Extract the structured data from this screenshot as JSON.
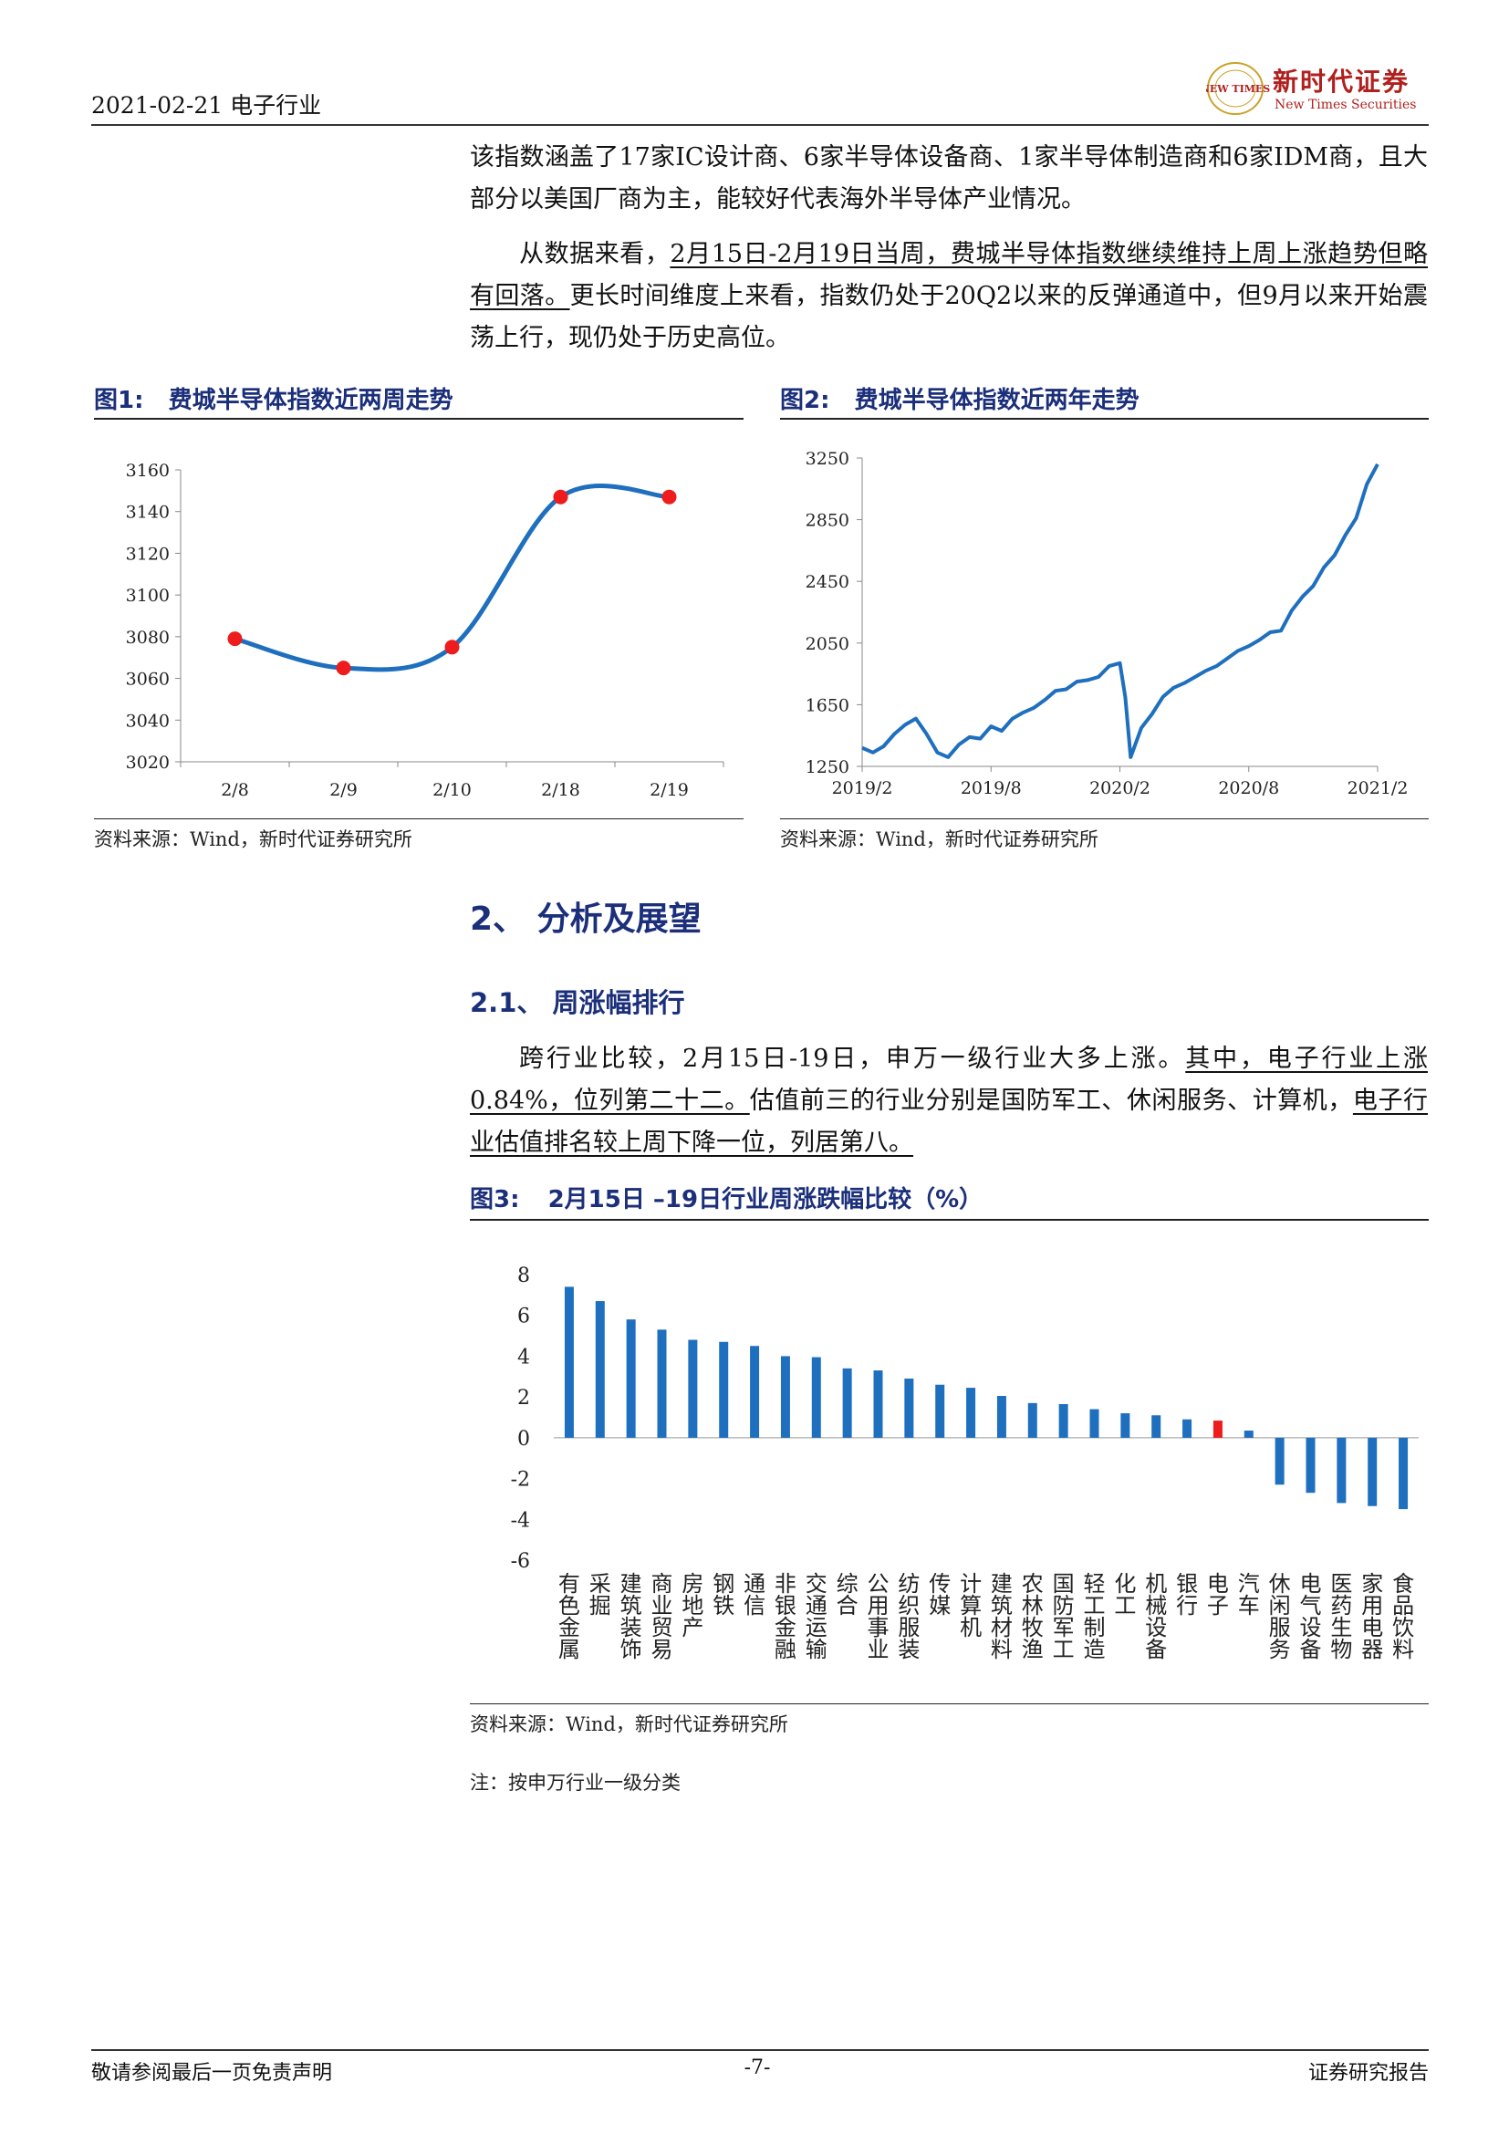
{
  "header": {
    "date_industry": "2021-02-21 电子行业",
    "logo_mark": "NEW TIMES",
    "logo_name": "新时代证券",
    "logo_en": "New Times Securities"
  },
  "intro": {
    "p1": "该指数涵盖了17家IC设计商、6家半导体设备商、1家半导体制造商和6家IDM商，且大部分以美国厂商为主，能较好代表海外半导体产业情况。",
    "p2_lead": "从数据来看，",
    "p2_underlined": "2月15日-2月19日当周，费城半导体指数继续维持上周上涨趋势但略有回落。",
    "p2_rest": "更长时间维度上来看，指数仍处于20Q2以来的反弹通道中，但9月以来开始震荡上行，现仍处于历史高位。"
  },
  "fig1": {
    "label": "图1:",
    "title": "费城半导体指数近两周走势",
    "source": "资料来源：Wind，新时代证券研究所"
  },
  "fig2": {
    "label": "图2:",
    "title": "费城半导体指数近两年走势",
    "source": "资料来源：Wind，新时代证券研究所"
  },
  "section2": {
    "title": "2、 分析及展望"
  },
  "section21": {
    "title": "2.1、 周涨幅排行",
    "p_lead": "跨行业比较，2月15日-19日，申万一级行业大多上涨。",
    "p_ul1": "其中，电子行业上涨0.84%，位列第二十二。",
    "p_mid": "估值前三的行业分别是国防军工、休闲服务、计算机，",
    "p_ul2": "电子行业估值排名较上周下降一位，列居第八。"
  },
  "fig3": {
    "label": "图3:",
    "title": "2月15日 –19日行业周涨跌幅比较（%）",
    "source": "资料来源：Wind，新时代证券研究所",
    "note": "注：按申万行业一级分类"
  },
  "footer": {
    "left": "敬请参阅最后一页免责声明",
    "center": "-7-",
    "right": "证券研究报告"
  },
  "colors": {
    "line": "#1f6fbf",
    "marker": "#ee1c1c",
    "bar": "#1f6fbf",
    "highlight": "#ee1c1c",
    "heading": "#1b2f7a"
  },
  "chart_data": [
    {
      "type": "line",
      "categories": [
        "2/8",
        "2/9",
        "2/10",
        "2/18",
        "2/19"
      ],
      "values": [
        3079,
        3065,
        3075,
        3147,
        3147
      ],
      "yticks": [
        3020,
        3040,
        3060,
        3080,
        3100,
        3120,
        3140,
        3160
      ],
      "ylim": [
        3020,
        3160
      ],
      "grid": false,
      "legend": "none"
    },
    {
      "type": "line",
      "xticks": [
        "2019/2",
        "2019/8",
        "2020/2",
        "2020/8",
        "2021/2"
      ],
      "yticks": [
        1250,
        1650,
        2050,
        2450,
        2850,
        3250
      ],
      "ylim": [
        1250,
        3250
      ],
      "x": [
        0,
        0.5,
        1,
        1.5,
        2,
        2.5,
        3,
        3.5,
        4,
        4.5,
        5,
        5.5,
        6,
        6.5,
        7,
        7.5,
        8,
        8.5,
        9,
        9.5,
        10,
        10.5,
        11,
        11.5,
        12,
        12.25,
        12.5,
        13,
        13.5,
        14,
        14.5,
        15,
        15.5,
        16,
        16.5,
        17,
        17.5,
        18,
        18.5,
        19,
        19.5,
        20,
        20.5,
        21,
        21.5,
        22,
        22.5,
        23,
        23.5,
        24
      ],
      "values": [
        1370,
        1340,
        1380,
        1460,
        1520,
        1560,
        1460,
        1340,
        1310,
        1390,
        1440,
        1430,
        1510,
        1480,
        1560,
        1600,
        1630,
        1680,
        1740,
        1750,
        1800,
        1810,
        1830,
        1900,
        1920,
        1700,
        1310,
        1500,
        1590,
        1700,
        1760,
        1790,
        1830,
        1870,
        1900,
        1950,
        2000,
        2030,
        2070,
        2120,
        2130,
        2260,
        2350,
        2420,
        2540,
        2620,
        2750,
        2860,
        3080,
        3210
      ],
      "grid": false,
      "legend": "none"
    },
    {
      "type": "bar",
      "categories": [
        "有色金属",
        "采掘",
        "建筑装饰",
        "商业贸易",
        "房地产",
        "钢铁",
        "通信",
        "非银金融",
        "交通运输",
        "综合",
        "公用事业",
        "纺织服装",
        "传媒",
        "计算机",
        "建筑材料",
        "农林牧渔",
        "国防军工",
        "轻工制造",
        "化工",
        "机械设备",
        "银行",
        "电子",
        "汽车",
        "休闲服务",
        "电气设备",
        "医药生物",
        "家用电器",
        "食品饮料"
      ],
      "values": [
        7.4,
        6.7,
        5.8,
        5.3,
        4.8,
        4.7,
        4.5,
        4.0,
        3.95,
        3.4,
        3.3,
        2.9,
        2.6,
        2.45,
        2.05,
        1.7,
        1.65,
        1.4,
        1.2,
        1.1,
        0.9,
        0.84,
        0.35,
        -2.3,
        -2.7,
        -3.2,
        -3.35,
        -3.5
      ],
      "highlight": "电子",
      "yticks": [
        -6,
        -4,
        -2,
        0,
        2,
        4,
        6,
        8
      ],
      "ylim": [
        -6,
        8
      ],
      "grid": false,
      "legend": "none"
    }
  ]
}
